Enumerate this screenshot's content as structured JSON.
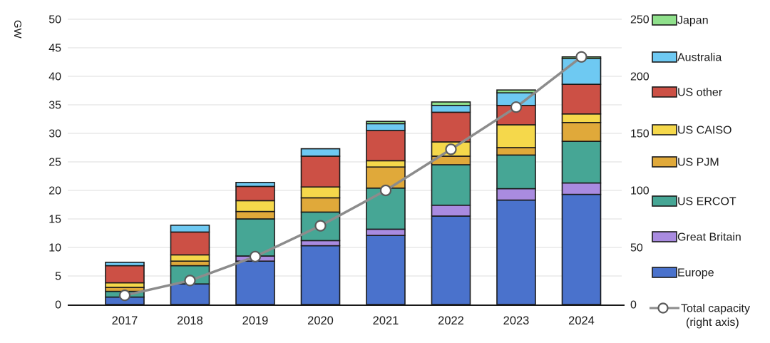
{
  "chart_data": {
    "type": "bar",
    "subtype": "stacked-bar-with-line",
    "title": "",
    "ylabel_left": "GW",
    "categories": [
      "2017",
      "2018",
      "2019",
      "2020",
      "2021",
      "2022",
      "2023",
      "2024"
    ],
    "series": [
      {
        "name": "Europe",
        "color": "#4a72cc",
        "values": [
          1.3,
          3.6,
          7.6,
          10.3,
          12.1,
          15.5,
          18.3,
          19.3
        ]
      },
      {
        "name": "Great Britain",
        "color": "#a98be0",
        "values": [
          0,
          0,
          0.9,
          0.9,
          1.1,
          1.9,
          2.0,
          2.0
        ]
      },
      {
        "name": "US ERCOT",
        "color": "#46a695",
        "values": [
          1.0,
          3.2,
          6.5,
          5.0,
          7.2,
          7.1,
          5.9,
          7.3
        ]
      },
      {
        "name": "US PJM",
        "color": "#e0a93a",
        "values": [
          0.7,
          0.8,
          1.3,
          2.5,
          3.7,
          1.5,
          1.3,
          3.3
        ]
      },
      {
        "name": "US CAISO",
        "color": "#f5d84b",
        "values": [
          0.8,
          1.1,
          1.9,
          1.9,
          1.1,
          2.5,
          4.0,
          1.5
        ]
      },
      {
        "name": "US other",
        "color": "#cc5045",
        "values": [
          3.0,
          4.0,
          2.5,
          5.4,
          5.3,
          5.2,
          3.4,
          5.2
        ]
      },
      {
        "name": "Australia",
        "color": "#6ec9f2",
        "values": [
          0.6,
          1.2,
          0.7,
          1.3,
          1.2,
          1.2,
          2.2,
          4.5
        ]
      },
      {
        "name": "Japan",
        "color": "#8fe08b",
        "values": [
          0,
          0,
          0,
          0,
          0.4,
          0.6,
          0.5,
          0.3
        ]
      }
    ],
    "line_series": {
      "name": "Total capacity (right axis)",
      "label_line1": "Total capacity",
      "label_line2": "(right axis)",
      "color": "#8c8c8c",
      "marker_fill": "#ffffff",
      "marker_stroke": "#5a5a5a",
      "values": [
        8,
        21,
        42,
        69,
        100,
        136,
        173,
        217
      ]
    },
    "left_axis": {
      "min": 0,
      "max": 50,
      "step": 5,
      "ticks": [
        "0",
        "5",
        "10",
        "15",
        "20",
        "25",
        "30",
        "35",
        "40",
        "45",
        "50"
      ]
    },
    "right_axis": {
      "min": 0,
      "max": 250,
      "step": 50,
      "ticks": [
        "0",
        "50",
        "100",
        "150",
        "200",
        "250"
      ]
    },
    "legend_order": [
      "Japan",
      "Australia",
      "US other",
      "US CAISO",
      "US PJM",
      "US ERCOT",
      "Great Britain",
      "Europe"
    ],
    "grid": true,
    "legend_position": "right",
    "colors": {
      "segment_border": "#1a1a1a",
      "axis_line": "#1a1a1a",
      "gridline": "#dcdcdc",
      "text": "#1a1a1a"
    }
  }
}
